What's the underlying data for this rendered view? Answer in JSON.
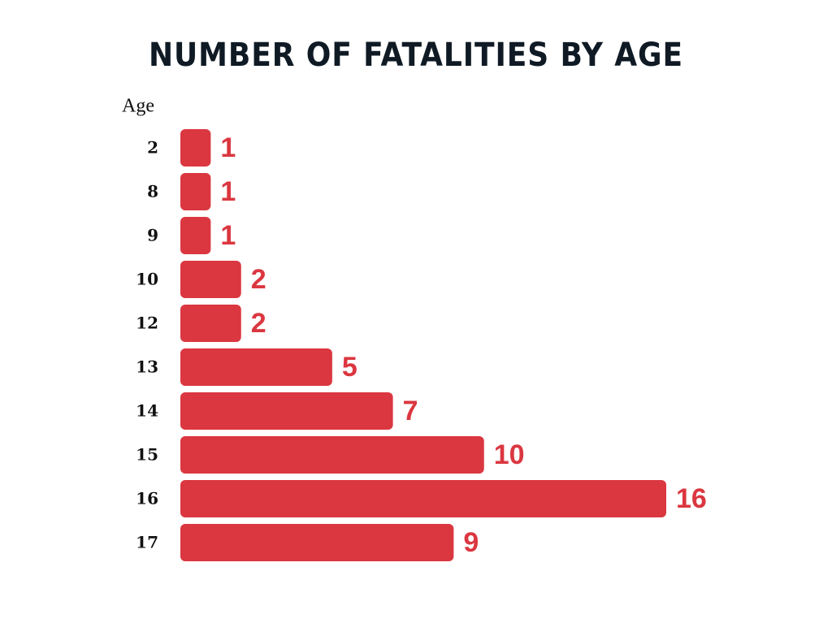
{
  "chart_data": {
    "type": "bar",
    "orientation": "horizontal",
    "title": "NUMBER OF FATALITIES BY AGE",
    "y_label": "Age",
    "categories": [
      "2",
      "8",
      "9",
      "10",
      "12",
      "13",
      "14",
      "15",
      "16",
      "17"
    ],
    "values": [
      1,
      1,
      1,
      2,
      2,
      5,
      7,
      10,
      16,
      9
    ],
    "color": "#db3740"
  }
}
